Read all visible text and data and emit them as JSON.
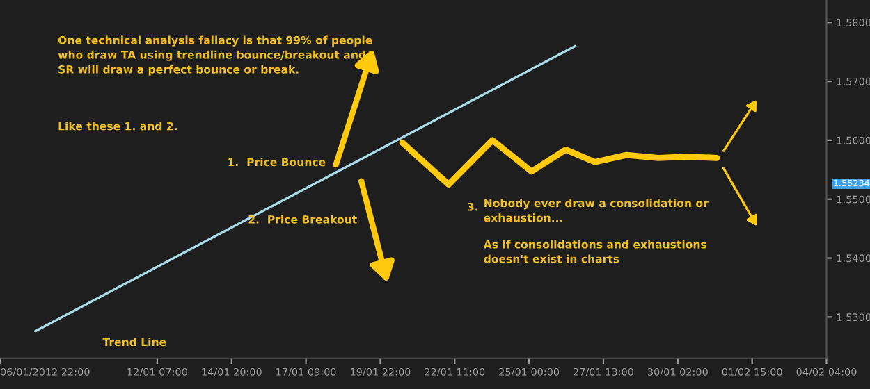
{
  "chart_data": {
    "type": "line",
    "xlim": [
      "2012-01-06T22:00",
      "2012-02-04T04:00"
    ],
    "ylim": [
      1.523,
      1.5838
    ],
    "xticks": [
      {
        "value": "2012-01-06T22:00",
        "label": "06/01/2012 22:00"
      },
      {
        "value": "2012-01-12T07:00",
        "label": "12/01 07:00"
      },
      {
        "value": "2012-01-14T20:00",
        "label": "14/01 20:00"
      },
      {
        "value": "2012-01-17T09:00",
        "label": "17/01 09:00"
      },
      {
        "value": "2012-01-19T22:00",
        "label": "19/01 22:00"
      },
      {
        "value": "2012-01-22T11:00",
        "label": "22/01 11:00"
      },
      {
        "value": "2012-01-25T00:00",
        "label": "25/01 00:00"
      },
      {
        "value": "2012-01-27T13:00",
        "label": "27/01 13:00"
      },
      {
        "value": "2012-01-30T02:00",
        "label": "30/01 02:00"
      },
      {
        "value": "2012-02-01T15:00",
        "label": "01/02 15:00"
      },
      {
        "value": "2012-02-04T04:00",
        "label": "04/02 04:00"
      }
    ],
    "yticks": [
      {
        "value": 1.53,
        "label": "1.5300"
      },
      {
        "value": 1.54,
        "label": "1.5400"
      },
      {
        "value": 1.55,
        "label": "1.5500"
      },
      {
        "value": 1.56,
        "label": "1.5600"
      },
      {
        "value": 1.57,
        "label": "1.5700"
      },
      {
        "value": 1.58,
        "label": "1.5800"
      }
    ],
    "series": [
      {
        "name": "Trend Line",
        "color": "#a8dcea",
        "x": [
          "2012-01-08T03:00",
          "2012-01-26T14:00"
        ],
        "values": [
          1.5276,
          1.576
        ]
      },
      {
        "color": "#ffc90e",
        "x": [
          "2012-01-20T16:00",
          "2012-01-22T06:00",
          "2012-01-23T18:00",
          "2012-01-25T02:00",
          "2012-01-26T06:00",
          "2012-01-27T06:00",
          "2012-01-28T08:00",
          "2012-01-29T10:00",
          "2012-01-30T09:00",
          "2012-01-31T10:00"
        ],
        "values": [
          1.5596,
          1.5525,
          1.56,
          1.5547,
          1.5584,
          1.5563,
          1.5575,
          1.557,
          1.5572,
          1.557
        ]
      }
    ],
    "annotations": [
      "One technical analysis fallacy is that 99% of people\nwho draw TA using trendline bounce/breakout and\nSR will draw a perfect bounce or break.",
      "Like these 1. and 2.",
      "1.  Price Bounce",
      "2.  Price Breakout",
      "3.",
      "Nobody ever draw a consolidation or\nexhaustion...",
      "As if consolidations and exhaustions\ndoesn't exist in charts",
      "1.55234"
    ],
    "grid": false,
    "marker": "none",
    "line_style": "solid"
  }
}
